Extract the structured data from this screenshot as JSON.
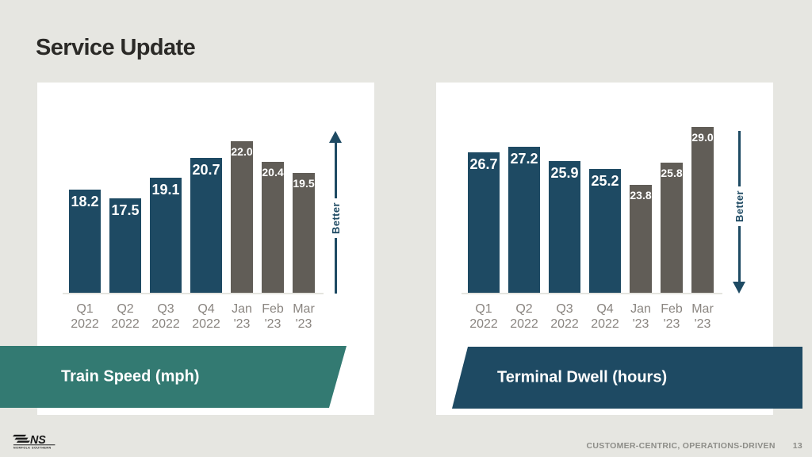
{
  "slide": {
    "title": "Service Update",
    "footer": {
      "tagline": "CUSTOMER-CENTRIC, OPERATIONS-DRIVEN",
      "page_number": "13",
      "logo_text": "NS",
      "logo_subtext": "NORFOLK SOUTHERN"
    }
  },
  "colors": {
    "background": "#e6e6e1",
    "card": "#ffffff",
    "navy": "#1e4a63",
    "gray_bar": "#615d57",
    "teal_banner": "#337a72",
    "axis_label": "#8a8580",
    "value_label": "#ffffff"
  },
  "chart_data": [
    {
      "type": "bar",
      "title": "Train Speed (mph)",
      "better_label": "Better",
      "better_direction": "up",
      "ylim": [
        10,
        22
      ],
      "categories": [
        [
          "Q1",
          "2022"
        ],
        [
          "Q2",
          "2022"
        ],
        [
          "Q3",
          "2022"
        ],
        [
          "Q4",
          "2022"
        ],
        [
          "Jan",
          "'23"
        ],
        [
          "Feb",
          "'23"
        ],
        [
          "Mar",
          "'23"
        ]
      ],
      "values": [
        18.2,
        17.5,
        19.1,
        20.7,
        22.0,
        20.4,
        19.5
      ],
      "groups": [
        "quarter",
        "quarter",
        "quarter",
        "quarter",
        "month",
        "month",
        "month"
      ],
      "series_colors": {
        "quarter": "#1e4a63",
        "month": "#615d57"
      },
      "legend_position": "none",
      "grid": false
    },
    {
      "type": "bar",
      "title": "Terminal Dwell (hours)",
      "better_label": "Better",
      "better_direction": "down",
      "ylim": [
        14,
        29
      ],
      "categories": [
        [
          "Q1",
          "2022"
        ],
        [
          "Q2",
          "2022"
        ],
        [
          "Q3",
          "2022"
        ],
        [
          "Q4",
          "2022"
        ],
        [
          "Jan",
          "'23"
        ],
        [
          "Feb",
          "'23"
        ],
        [
          "Mar",
          "'23"
        ]
      ],
      "values": [
        26.7,
        27.2,
        25.9,
        25.2,
        23.8,
        25.8,
        29.0
      ],
      "groups": [
        "quarter",
        "quarter",
        "quarter",
        "quarter",
        "month",
        "month",
        "month"
      ],
      "series_colors": {
        "quarter": "#1e4a63",
        "month": "#615d57"
      },
      "legend_position": "none",
      "grid": false
    }
  ]
}
